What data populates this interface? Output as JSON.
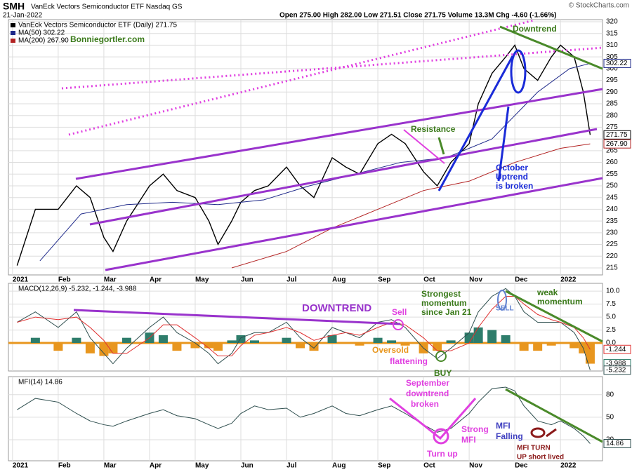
{
  "header": {
    "symbol": "SMH",
    "name": "VanEck Vectors Semiconductor ETF  Nasdaq GS",
    "source": "© StockCharts.com",
    "date": "21-Jan-2022",
    "quote": "Open 275.00  High 282.00  Low 271.51  Close 271.75  Volume 13.3M  Chg -4.60 (-1.66%)"
  },
  "chart_data": [
    {
      "type": "line",
      "xlim": [
        -0.09,
        12.92
      ],
      "ylim": [
        212,
        320.9
      ],
      "xticks": [
        {
          "value": 0,
          "label": "2021"
        },
        {
          "value": 1,
          "label": "Feb"
        },
        {
          "value": 2,
          "label": "Mar"
        },
        {
          "value": 3,
          "label": "Apr"
        },
        {
          "value": 4,
          "label": "May"
        },
        {
          "value": 5,
          "label": "Jun"
        },
        {
          "value": 6,
          "label": "Jul"
        },
        {
          "value": 7,
          "label": "Aug"
        },
        {
          "value": 8,
          "label": "Sep"
        },
        {
          "value": 9,
          "label": "Oct"
        },
        {
          "value": 10,
          "label": "Nov"
        },
        {
          "value": 11,
          "label": "Dec"
        },
        {
          "value": 12,
          "label": "2022"
        }
      ],
      "yticks": [
        215,
        220,
        225,
        230,
        235,
        240,
        245,
        250,
        255,
        260,
        265,
        270,
        275,
        280,
        285,
        290,
        295,
        300,
        305,
        310,
        315,
        320
      ],
      "grid": true,
      "x": [
        0.1,
        0.5,
        1.0,
        1.4,
        1.7,
        2.0,
        2.2,
        2.5,
        3.0,
        3.3,
        3.6,
        4.0,
        4.3,
        4.5,
        4.8,
        5.0,
        5.3,
        5.6,
        6.0,
        6.3,
        6.6,
        7.0,
        7.3,
        7.6,
        8.0,
        8.3,
        8.6,
        9.0,
        9.3,
        9.6,
        10.0,
        10.2,
        10.5,
        10.8,
        11.0,
        11.2,
        11.5,
        11.8,
        12.0,
        12.3,
        12.5,
        12.65
      ],
      "series": [
        {
          "name": "VanEck Vectors Semiconductor ETF (Daily) 271.75",
          "color": "#000000",
          "last_label": "271.75",
          "values": [
            216,
            240,
            240,
            250,
            245,
            228,
            222,
            235,
            250,
            255,
            248,
            245,
            235,
            225,
            235,
            243,
            248,
            250,
            258,
            250,
            245,
            262,
            258,
            255,
            268,
            272,
            268,
            256,
            250,
            260,
            268,
            285,
            298,
            305,
            310,
            300,
            295,
            305,
            310,
            305,
            290,
            271.75
          ]
        },
        {
          "name": "MA(50) 302.22",
          "color": "#1f2a8a",
          "last_label": "302.22",
          "x": [
            0.6,
            1.5,
            2.5,
            3.5,
            4.5,
            5.5,
            6.5,
            7.5,
            8.5,
            9.5,
            10.5,
            11.5,
            12.2,
            12.65
          ],
          "values": [
            218,
            238,
            242,
            243,
            242,
            244,
            250,
            255,
            260,
            262,
            270,
            290,
            300,
            302.22
          ]
        },
        {
          "name": "MA(200) 267.90",
          "color": "#b22222",
          "last_label": "267.90",
          "x": [
            4.8,
            6,
            7,
            8,
            9,
            10,
            11,
            12,
            12.65
          ],
          "values": [
            215,
            222,
            232,
            240,
            248,
            252,
            260,
            266,
            267.9
          ]
        }
      ],
      "annotations": [
        "Downtrend",
        "Resistance",
        "October",
        "Uptrend",
        "is broken",
        "Bonniegortler.com"
      ]
    },
    {
      "type": "line",
      "title": "MACD(12,26,9) -5.232, -1.244, -3.988",
      "xlim": [
        -0.09,
        12.92
      ],
      "ylim": [
        -5.4,
        11.5
      ],
      "yticks": [
        {
          "value": 10,
          "label": "10.0"
        },
        {
          "value": 7.5,
          "label": "7.5"
        },
        {
          "value": 5,
          "label": "5.0"
        },
        {
          "value": 2.5,
          "label": "2.5"
        },
        {
          "value": 0,
          "label": "0.0"
        }
      ],
      "grid": true,
      "x": [
        0.1,
        0.5,
        1.0,
        1.4,
        1.7,
        2.0,
        2.2,
        2.5,
        3.0,
        3.3,
        3.6,
        4.0,
        4.3,
        4.5,
        4.8,
        5.0,
        5.3,
        5.6,
        6.0,
        6.3,
        6.6,
        7.0,
        7.3,
        7.6,
        8.0,
        8.3,
        8.6,
        9.0,
        9.3,
        9.6,
        10.0,
        10.2,
        10.5,
        10.8,
        11.0,
        11.2,
        11.5,
        11.8,
        12.0,
        12.3,
        12.5,
        12.65
      ],
      "series": [
        {
          "type": "bar",
          "color": "#2e7d6b",
          "negative_color": "#e8961e",
          "last_label": "-3.988",
          "values": [
            0,
            1,
            -1.5,
            1,
            -2,
            -2.5,
            -2,
            1,
            2,
            1.5,
            -1.5,
            -1,
            -1,
            -1.5,
            0.5,
            1.5,
            0.5,
            0,
            1,
            -1,
            -1.5,
            1.5,
            0,
            -0.5,
            1,
            0.5,
            -0.5,
            -2,
            -1.5,
            0.5,
            2,
            3,
            2.5,
            1.5,
            0,
            -1.5,
            -1.5,
            -0.5,
            0,
            -1,
            -2,
            -3.988
          ]
        },
        {
          "color": "#2f4f4f",
          "last_label": "-5.232",
          "values": [
            4,
            6,
            3,
            6,
            1,
            -2,
            -4,
            -1,
            3,
            5,
            2,
            0,
            -2,
            -4,
            -2,
            1,
            2,
            2,
            4,
            1,
            -1,
            3,
            2,
            1,
            4,
            4.5,
            3,
            -1,
            -3,
            -1,
            2,
            6,
            9,
            10.5,
            9,
            6,
            4,
            4,
            4,
            2,
            -1,
            -5.232
          ]
        },
        {
          "color": "#e03030",
          "last_label": "-1.244",
          "values": [
            4,
            5,
            4.5,
            5,
            3,
            0.5,
            -2,
            -2,
            1,
            3.5,
            3.5,
            1,
            -1,
            -2.5,
            -2.5,
            -0.5,
            1.5,
            2,
            3,
            2,
            0.5,
            1.5,
            2,
            1.5,
            3,
            4,
            3.5,
            1,
            -1.5,
            -1.5,
            0,
            3,
            6.5,
            9,
            9,
            7.5,
            5.5,
            4.5,
            4,
            3,
            1,
            -1.244
          ]
        }
      ],
      "annotations": [
        "DOWNTREND",
        "Sell",
        "Strongest",
        "momentum",
        "since Jan 21",
        "SELL",
        "weak",
        "momentum",
        "Oversold",
        "flattening",
        "BUY"
      ]
    },
    {
      "type": "line",
      "title": "MFI(14) 14.86",
      "xlim": [
        -0.09,
        12.92
      ],
      "ylim": [
        -8,
        104
      ],
      "xticks": [
        {
          "value": 0,
          "label": "2021"
        },
        {
          "value": 1,
          "label": "Feb"
        },
        {
          "value": 2,
          "label": "Mar"
        },
        {
          "value": 3,
          "label": "Apr"
        },
        {
          "value": 4,
          "label": "May"
        },
        {
          "value": 5,
          "label": "Jun"
        },
        {
          "value": 6,
          "label": "Jul"
        },
        {
          "value": 7,
          "label": "Aug"
        },
        {
          "value": 8,
          "label": "Sep"
        },
        {
          "value": 9,
          "label": "Oct"
        },
        {
          "value": 10,
          "label": "Nov"
        },
        {
          "value": 11,
          "label": "Dec"
        },
        {
          "value": 12,
          "label": "2022"
        }
      ],
      "yticks": [
        80,
        50,
        20
      ],
      "grid": true,
      "x": [
        0.1,
        0.5,
        1.0,
        1.4,
        1.7,
        2.0,
        2.2,
        2.5,
        3.0,
        3.3,
        3.6,
        4.0,
        4.3,
        4.5,
        4.8,
        5.0,
        5.3,
        5.6,
        6.0,
        6.3,
        6.6,
        7.0,
        7.3,
        7.6,
        8.0,
        8.3,
        8.6,
        9.0,
        9.3,
        9.6,
        10.0,
        10.2,
        10.5,
        10.8,
        11.0,
        11.2,
        11.5,
        11.8,
        12.0,
        12.3,
        12.5,
        12.65
      ],
      "series": [
        {
          "color": "#2f4f4f",
          "last_label": "14.86",
          "values": [
            60,
            75,
            70,
            55,
            45,
            40,
            38,
            45,
            55,
            60,
            52,
            48,
            40,
            35,
            42,
            55,
            65,
            60,
            62,
            50,
            55,
            65,
            55,
            52,
            60,
            65,
            55,
            40,
            30,
            35,
            55,
            70,
            88,
            90,
            85,
            65,
            45,
            40,
            45,
            35,
            25,
            14.86
          ]
        }
      ],
      "annotations": [
        "September",
        "downtrend",
        "broken",
        "Strong",
        "MFI",
        "Turn up",
        "MFI",
        "Falling",
        "MFI TURN",
        "UP short lived"
      ]
    }
  ]
}
